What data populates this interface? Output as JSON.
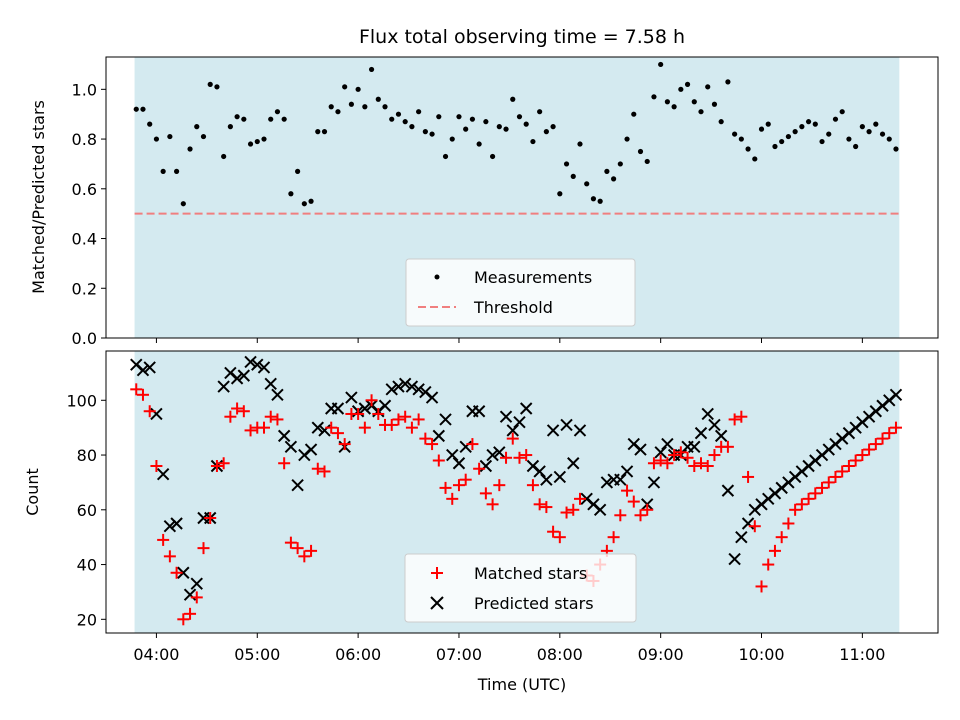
{
  "chart_data": [
    {
      "type": "scatter",
      "title": "Flux total observing time = 7.58 h",
      "xlabel": "",
      "ylabel": "Matched/Predicted stars",
      "xlim": [
        "03:30",
        "11:45"
      ],
      "ylim": [
        0,
        1.13
      ],
      "yticks": [
        0.0,
        0.2,
        0.4,
        0.6,
        0.8,
        1.0
      ],
      "xticks": [
        "04:00",
        "05:00",
        "06:00",
        "07:00",
        "08:00",
        "09:00",
        "10:00",
        "11:00"
      ],
      "x_tick_labels_shown": false,
      "observing_window": {
        "start": "03:47",
        "end": "11:22",
        "color": "#d4eaf0"
      },
      "threshold": {
        "value": 0.5,
        "color": "#f07f7f",
        "style": "dashed",
        "name": "Threshold"
      },
      "legend": {
        "placement": "lower center"
      },
      "series": [
        {
          "name": "Measurements",
          "marker": "dot",
          "color": "#000000",
          "x": [
            "03:48",
            "03:52",
            "03:56",
            "04:00",
            "04:04",
            "04:08",
            "04:12",
            "04:16",
            "04:20",
            "04:24",
            "04:28",
            "04:32",
            "04:36",
            "04:40",
            "04:44",
            "04:48",
            "04:52",
            "04:56",
            "05:00",
            "05:04",
            "05:08",
            "05:12",
            "05:16",
            "05:20",
            "05:24",
            "05:28",
            "05:32",
            "05:36",
            "05:40",
            "05:44",
            "05:48",
            "05:52",
            "05:56",
            "06:00",
            "06:04",
            "06:08",
            "06:12",
            "06:16",
            "06:20",
            "06:24",
            "06:28",
            "06:32",
            "06:36",
            "06:40",
            "06:44",
            "06:48",
            "06:52",
            "06:56",
            "07:00",
            "07:04",
            "07:08",
            "07:12",
            "07:16",
            "07:20",
            "07:24",
            "07:28",
            "07:32",
            "07:36",
            "07:40",
            "07:44",
            "07:48",
            "07:52",
            "07:56",
            "08:00",
            "08:04",
            "08:08",
            "08:12",
            "08:16",
            "08:20",
            "08:24",
            "08:28",
            "08:32",
            "08:36",
            "08:40",
            "08:44",
            "08:48",
            "08:52",
            "08:56",
            "09:00",
            "09:04",
            "09:08",
            "09:12",
            "09:16",
            "09:20",
            "09:24",
            "09:28",
            "09:32",
            "09:36",
            "09:40",
            "09:44",
            "09:48",
            "09:52",
            "09:56",
            "10:00",
            "10:04",
            "10:08",
            "10:12",
            "10:16",
            "10:20",
            "10:24",
            "10:28",
            "10:32",
            "10:36",
            "10:40",
            "10:44",
            "10:48",
            "10:52",
            "10:56",
            "11:00",
            "11:04",
            "11:08",
            "11:12",
            "11:16",
            "11:20"
          ],
          "y": [
            0.92,
            0.92,
            0.86,
            0.8,
            0.67,
            0.81,
            0.67,
            0.54,
            0.76,
            0.85,
            0.81,
            1.02,
            1.01,
            0.73,
            0.85,
            0.89,
            0.88,
            0.78,
            0.79,
            0.8,
            0.88,
            0.91,
            0.88,
            0.58,
            0.67,
            0.54,
            0.55,
            0.83,
            0.83,
            0.93,
            0.91,
            1.01,
            0.94,
            1.0,
            0.93,
            1.08,
            0.96,
            0.93,
            0.88,
            0.9,
            0.87,
            0.85,
            0.91,
            0.83,
            0.82,
            0.89,
            0.73,
            0.8,
            0.89,
            0.84,
            0.88,
            0.78,
            0.87,
            0.73,
            0.85,
            0.84,
            0.96,
            0.89,
            0.86,
            0.79,
            0.91,
            0.83,
            0.85,
            0.58,
            0.7,
            0.65,
            0.78,
            0.62,
            0.56,
            0.55,
            0.67,
            0.64,
            0.7,
            0.8,
            0.9,
            0.75,
            0.71,
            0.97,
            1.1,
            0.95,
            0.93,
            1.0,
            1.02,
            0.95,
            0.91,
            1.01,
            0.94,
            0.87,
            1.03,
            0.82,
            0.8,
            0.76,
            0.72,
            0.84,
            0.86,
            0.77,
            0.79,
            0.81,
            0.83,
            0.85,
            0.87,
            0.86,
            0.79,
            0.82,
            0.88,
            0.91,
            0.8,
            0.77,
            0.85,
            0.83,
            0.86,
            0.82,
            0.8,
            0.76
          ],
          "note": ""
        }
      ]
    },
    {
      "type": "scatter",
      "title": "",
      "xlabel": "Time (UTC)",
      "ylabel": "Count",
      "xlim": [
        "03:30",
        "11:45"
      ],
      "ylim": [
        15,
        118
      ],
      "yticks": [
        20,
        40,
        60,
        80,
        100
      ],
      "xticks": [
        "04:00",
        "05:00",
        "06:00",
        "07:00",
        "08:00",
        "09:00",
        "10:00",
        "11:00"
      ],
      "observing_window": {
        "start": "03:47",
        "end": "11:22",
        "color": "#d4eaf0"
      },
      "legend": {
        "placement": "lower center"
      },
      "series": [
        {
          "name": "Matched stars",
          "marker": "plus",
          "color": "#ff0000",
          "x": [
            "03:48",
            "03:52",
            "03:56",
            "04:00",
            "04:04",
            "04:08",
            "04:12",
            "04:16",
            "04:20",
            "04:24",
            "04:28",
            "04:32",
            "04:36",
            "04:40",
            "04:44",
            "04:48",
            "04:52",
            "04:56",
            "05:00",
            "05:04",
            "05:08",
            "05:12",
            "05:16",
            "05:20",
            "05:24",
            "05:28",
            "05:32",
            "05:36",
            "05:40",
            "05:44",
            "05:48",
            "05:52",
            "05:56",
            "06:00",
            "06:04",
            "06:08",
            "06:12",
            "06:16",
            "06:20",
            "06:24",
            "06:28",
            "06:32",
            "06:36",
            "06:40",
            "06:44",
            "06:48",
            "06:52",
            "06:56",
            "07:00",
            "07:04",
            "07:08",
            "07:12",
            "07:16",
            "07:20",
            "07:24",
            "07:28",
            "07:32",
            "07:36",
            "07:40",
            "07:44",
            "07:48",
            "07:52",
            "07:56",
            "08:00",
            "08:04",
            "08:08",
            "08:12",
            "08:16",
            "08:20",
            "08:24",
            "08:28",
            "08:32",
            "08:36",
            "08:40",
            "08:44",
            "08:48",
            "08:52",
            "08:56",
            "09:00",
            "09:04",
            "09:08",
            "09:12",
            "09:16",
            "09:20",
            "09:24",
            "09:28",
            "09:32",
            "09:36",
            "09:40",
            "09:44",
            "09:48",
            "09:52",
            "09:56",
            "10:00",
            "10:04",
            "10:08",
            "10:12",
            "10:16",
            "10:20",
            "10:24",
            "10:28",
            "10:32",
            "10:36",
            "10:40",
            "10:44",
            "10:48",
            "10:52",
            "10:56",
            "11:00",
            "11:04",
            "11:08",
            "11:12",
            "11:16",
            "11:20"
          ],
          "y": [
            104,
            102,
            96,
            76,
            49,
            43,
            37,
            20,
            22,
            28,
            46,
            57,
            76,
            77,
            94,
            97,
            96,
            89,
            90,
            90,
            94,
            93,
            77,
            48,
            46,
            43,
            45,
            75,
            74,
            90,
            88,
            84,
            95,
            95,
            90,
            100,
            95,
            91,
            91,
            93,
            94,
            90,
            93,
            86,
            84,
            78,
            68,
            64,
            69,
            71,
            84,
            75,
            66,
            62,
            69,
            79,
            86,
            79,
            80,
            69,
            62,
            61,
            52,
            50,
            59,
            60,
            64,
            36,
            34,
            40,
            45,
            50,
            58,
            67,
            63,
            58,
            60,
            77,
            78,
            77,
            80,
            81,
            79,
            76,
            77,
            76,
            80,
            83,
            83,
            93,
            94,
            72,
            54,
            32,
            40,
            45,
            50,
            55,
            60,
            62,
            64,
            66,
            68,
            70,
            72,
            74,
            76,
            78,
            80,
            82,
            84,
            86,
            88,
            90
          ],
          "note": ""
        },
        {
          "name": "Predicted stars",
          "marker": "x",
          "color": "#000000",
          "x": [
            "03:48",
            "03:52",
            "03:56",
            "04:00",
            "04:04",
            "04:08",
            "04:12",
            "04:16",
            "04:20",
            "04:24",
            "04:28",
            "04:32",
            "04:36",
            "04:40",
            "04:44",
            "04:48",
            "04:52",
            "04:56",
            "05:00",
            "05:04",
            "05:08",
            "05:12",
            "05:16",
            "05:20",
            "05:24",
            "05:28",
            "05:32",
            "05:36",
            "05:40",
            "05:44",
            "05:48",
            "05:52",
            "05:56",
            "06:00",
            "06:04",
            "06:08",
            "06:12",
            "06:16",
            "06:20",
            "06:24",
            "06:28",
            "06:32",
            "06:36",
            "06:40",
            "06:44",
            "06:48",
            "06:52",
            "06:56",
            "07:00",
            "07:04",
            "07:08",
            "07:12",
            "07:16",
            "07:20",
            "07:24",
            "07:28",
            "07:32",
            "07:36",
            "07:40",
            "07:44",
            "07:48",
            "07:52",
            "07:56",
            "08:00",
            "08:04",
            "08:08",
            "08:12",
            "08:16",
            "08:20",
            "08:24",
            "08:28",
            "08:32",
            "08:36",
            "08:40",
            "08:44",
            "08:48",
            "08:52",
            "08:56",
            "09:00",
            "09:04",
            "09:08",
            "09:12",
            "09:16",
            "09:20",
            "09:24",
            "09:28",
            "09:32",
            "09:36",
            "09:40",
            "09:44",
            "09:48",
            "09:52",
            "09:56",
            "10:00",
            "10:04",
            "10:08",
            "10:12",
            "10:16",
            "10:20",
            "10:24",
            "10:28",
            "10:32",
            "10:36",
            "10:40",
            "10:44",
            "10:48",
            "10:52",
            "10:56",
            "11:00",
            "11:04",
            "11:08",
            "11:12",
            "11:16",
            "11:20"
          ],
          "y": [
            113,
            111,
            112,
            95,
            73,
            54,
            55,
            37,
            29,
            33,
            57,
            57,
            76,
            105,
            110,
            108,
            109,
            114,
            113,
            112,
            106,
            102,
            87,
            83,
            69,
            80,
            82,
            90,
            89,
            97,
            97,
            83,
            101,
            96,
            97,
            98,
            96,
            98,
            104,
            105,
            106,
            105,
            104,
            103,
            101,
            87,
            93,
            80,
            77,
            83,
            96,
            96,
            76,
            80,
            81,
            94,
            89,
            92,
            97,
            76,
            74,
            71,
            89,
            72,
            91,
            77,
            89,
            64,
            62,
            60,
            70,
            71,
            71,
            74,
            84,
            82,
            62,
            70,
            81,
            84,
            80,
            80,
            83,
            83,
            88,
            95,
            91,
            87,
            67,
            42,
            50,
            55,
            60,
            62,
            64,
            66,
            68,
            70,
            72,
            74,
            76,
            78,
            80,
            82,
            84,
            86,
            88,
            90,
            92,
            94,
            96,
            98,
            100,
            102
          ],
          "note": ""
        }
      ]
    }
  ]
}
